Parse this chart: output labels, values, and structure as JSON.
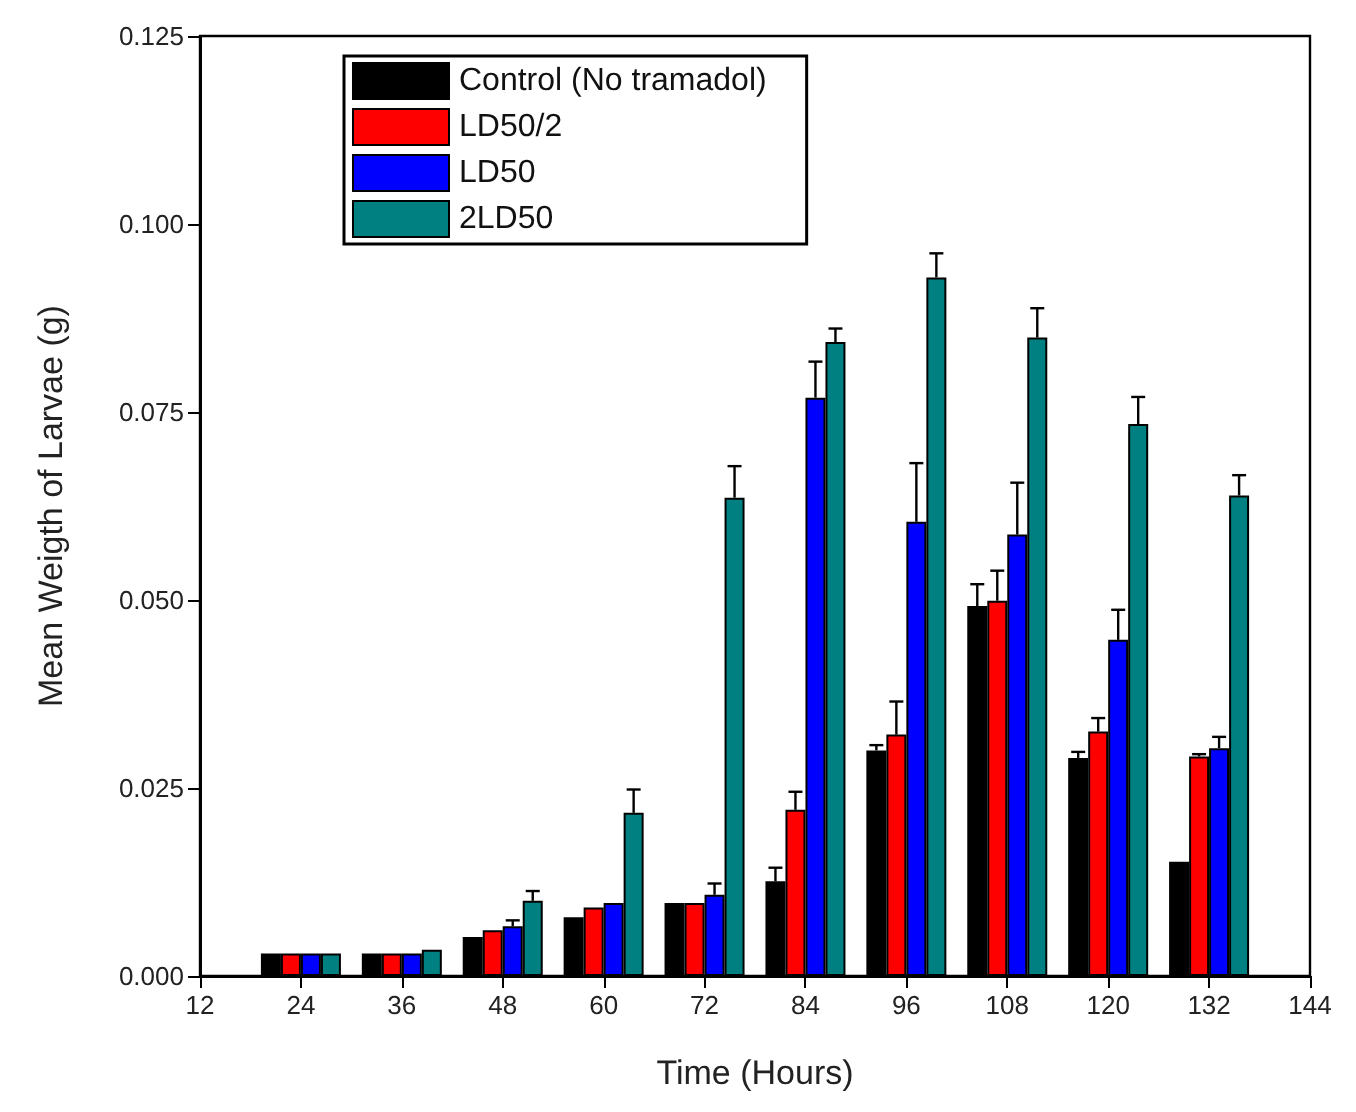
{
  "chart_data": {
    "type": "bar",
    "xlabel": "Time (Hours)",
    "ylabel": "Mean Weigth of Larvae (g)",
    "x": [
      24,
      36,
      48,
      60,
      72,
      84,
      96,
      108,
      120,
      132
    ],
    "xlim": [
      12,
      144
    ],
    "xticks": [
      12,
      24,
      36,
      48,
      60,
      72,
      84,
      96,
      108,
      120,
      132,
      144
    ],
    "ylim": [
      0,
      0.125
    ],
    "yticks": [
      {
        "value": 0,
        "label": "0.000"
      },
      {
        "value": 0.025,
        "label": "0.025"
      },
      {
        "value": 0.05,
        "label": "0.050"
      },
      {
        "value": 0.075,
        "label": "0.075"
      },
      {
        "value": 0.1,
        "label": "0.100"
      },
      {
        "value": 0.125,
        "label": "0.125"
      }
    ],
    "series": [
      {
        "name": "Control (No tramadol)",
        "color": "#000000",
        "values": [
          0.003,
          0.003,
          0.0052,
          0.0078,
          0.0097,
          0.0126,
          0.03,
          0.0492,
          0.029,
          0.0152
        ],
        "errors": [
          null,
          null,
          null,
          null,
          null,
          0.0018,
          0.0007,
          0.0029,
          0.0008,
          null
        ]
      },
      {
        "name": "LD50/2",
        "color": "#ff0000",
        "values": [
          0.003,
          0.003,
          0.0061,
          0.0091,
          0.0097,
          0.0221,
          0.0321,
          0.0499,
          0.0325,
          0.0292
        ],
        "errors": [
          null,
          null,
          null,
          null,
          null,
          0.0024,
          0.0044,
          0.004,
          0.0018,
          0.0003
        ]
      },
      {
        "name": "LD50",
        "color": "#0000ff",
        "values": [
          0.003,
          0.003,
          0.0066,
          0.0097,
          0.0108,
          0.0769,
          0.0604,
          0.0587,
          0.0447,
          0.0303
        ],
        "errors": [
          null,
          null,
          0.0008,
          null,
          0.0015,
          0.0048,
          0.0078,
          0.0069,
          0.004,
          0.0015
        ]
      },
      {
        "name": "2LD50",
        "color": "#008080",
        "values": [
          0.003,
          0.0035,
          0.01,
          0.0217,
          0.0636,
          0.0843,
          0.0929,
          0.0849,
          0.0734,
          0.0639
        ],
        "errors": [
          null,
          null,
          0.0013,
          0.0031,
          0.0042,
          0.0018,
          0.0032,
          0.0039,
          0.0036,
          0.0027
        ]
      }
    ],
    "legend": "top left",
    "grid": false
  }
}
